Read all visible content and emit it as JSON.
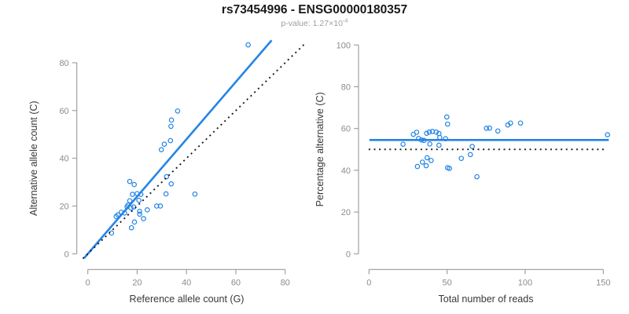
{
  "header": {
    "title": "rs73454996 - ENSG00000180357",
    "subtitle": {
      "label": "p-value:",
      "text": "p-value: 1.27×10",
      "exponent": "-4"
    }
  },
  "colors": {
    "points": "#2585e5",
    "fit_line": "#2585e5",
    "reference_line": "#1a1a1a",
    "axis": "#999999",
    "tick_labels": "#8c8c8c",
    "axis_titles": "#383838",
    "title": "#1a1a1a",
    "subtitle": "#9e9e9e",
    "background": "#ffffff"
  },
  "chart_data": [
    {
      "type": "scatter",
      "panel": "left",
      "xlabel": "Reference allele count (G)",
      "ylabel": "Alternative allele count (C)",
      "xticks": [
        0,
        20,
        40,
        60,
        80
      ],
      "yticks": [
        0,
        20,
        40,
        60,
        80
      ],
      "xlim": [
        -4,
        88
      ],
      "ylim": [
        -6,
        91
      ],
      "grid": false,
      "legend": null,
      "marker": "open-circle",
      "points": [
        [
          65,
          87.5
        ],
        [
          36.4,
          59.8
        ],
        [
          33.9,
          56
        ],
        [
          33.7,
          53.4
        ],
        [
          33.5,
          47.4
        ],
        [
          31,
          45.9
        ],
        [
          29.8,
          43.6
        ],
        [
          43.4,
          25
        ],
        [
          31.9,
          32.3
        ],
        [
          33.8,
          29.3
        ],
        [
          31.7,
          25.1
        ],
        [
          17,
          30.3
        ],
        [
          18.8,
          29
        ],
        [
          18.1,
          24.9
        ],
        [
          20,
          25.2
        ],
        [
          21.5,
          24.9
        ],
        [
          17,
          22.2
        ],
        [
          20.7,
          22.4
        ],
        [
          15.9,
          19.7
        ],
        [
          17.5,
          19.2
        ],
        [
          27.9,
          20
        ],
        [
          29.4,
          20
        ],
        [
          24.1,
          18.4
        ],
        [
          16.3,
          20.4
        ],
        [
          18.6,
          19.6
        ],
        [
          12.2,
          16.3
        ],
        [
          13.6,
          17.4
        ],
        [
          14.9,
          17.1
        ],
        [
          11.5,
          15.6
        ],
        [
          21,
          17.8
        ],
        [
          21,
          16.6
        ],
        [
          18.9,
          13.3
        ],
        [
          17.7,
          10.9
        ],
        [
          22.6,
          14.7
        ],
        [
          9.6,
          8.7
        ]
      ],
      "lines": [
        {
          "name": "regression-fit-line",
          "style": "solid",
          "color_key": "fit_line",
          "x1": -1.5,
          "y1": -1.8,
          "x2": 74.5,
          "y2": 89.4
        },
        {
          "name": "identity-line",
          "style": "dotted",
          "color_key": "reference_line",
          "x1": -2,
          "y1": -2,
          "x2": 88,
          "y2": 88
        }
      ]
    },
    {
      "type": "scatter",
      "panel": "right",
      "xlabel": "Total number of reads",
      "ylabel": "Percentage alternative (C)",
      "xticks": [
        0,
        50,
        100,
        150
      ],
      "yticks": [
        0,
        20,
        40,
        60,
        80,
        100
      ],
      "xlim": [
        -6,
        158
      ],
      "ylim": [
        -5,
        104
      ],
      "grid": false,
      "legend": null,
      "marker": "open-circle",
      "points": [
        [
          152.7,
          57
        ],
        [
          97,
          62.6
        ],
        [
          90.6,
          62.6
        ],
        [
          88.9,
          61.7
        ],
        [
          82.5,
          58.8
        ],
        [
          77.2,
          60.2
        ],
        [
          75.2,
          60.1
        ],
        [
          69.1,
          36.9
        ],
        [
          66.1,
          51.4
        ],
        [
          64.9,
          47.5
        ],
        [
          59.1,
          45.7
        ],
        [
          49.8,
          65.5
        ],
        [
          50.3,
          62.1
        ],
        [
          49,
          55.1
        ],
        [
          45.3,
          55.7
        ],
        [
          44.8,
          57.6
        ],
        [
          43,
          58.3
        ],
        [
          40.6,
          58.6
        ],
        [
          38.6,
          58.3
        ],
        [
          36.9,
          57.7
        ],
        [
          35.2,
          54.3
        ],
        [
          33.6,
          54.5
        ],
        [
          31.7,
          55.2
        ],
        [
          30.5,
          58.2
        ],
        [
          28.4,
          57.2
        ],
        [
          21.8,
          52.5
        ],
        [
          44.8,
          52
        ],
        [
          38.9,
          52.6
        ],
        [
          37.2,
          46
        ],
        [
          39.8,
          44.7
        ],
        [
          36.6,
          42.2
        ],
        [
          34.2,
          43.9
        ],
        [
          31,
          41.8
        ],
        [
          50.3,
          41.2
        ],
        [
          51.5,
          40.9
        ]
      ],
      "lines": [
        {
          "name": "mean-percentage-line",
          "style": "solid",
          "color_key": "fit_line",
          "x1": 0.3,
          "y1": 54.5,
          "x2": 153.5,
          "y2": 54.5
        },
        {
          "name": "expected-50-line",
          "style": "dotted",
          "color_key": "reference_line",
          "x1": -0.2,
          "y1": 50,
          "x2": 150.5,
          "y2": 50
        }
      ]
    }
  ]
}
